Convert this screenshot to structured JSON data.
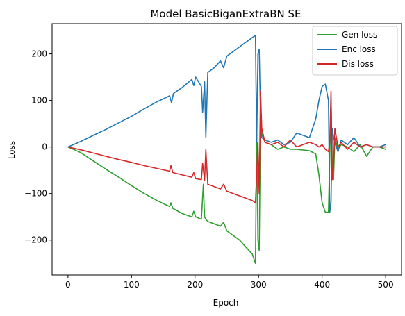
{
  "chart_data": {
    "type": "line",
    "title": "Model BasicBiganExtraBN SE",
    "xlabel": "Epoch",
    "ylabel": "Loss",
    "xlim": [
      -25,
      525
    ],
    "ylim": [
      -275,
      265
    ],
    "xticks": [
      0,
      100,
      200,
      300,
      400,
      500
    ],
    "xtick_labels": [
      "0",
      "100",
      "200",
      "300",
      "400",
      "500"
    ],
    "yticks": [
      -200,
      -100,
      0,
      100,
      200
    ],
    "ytick_labels": [
      "−200",
      "−100",
      "0",
      "100",
      "200"
    ],
    "grid": false,
    "legend_position": "top-right",
    "series": [
      {
        "name": "Gen loss",
        "color": "#2ca02c",
        "x": [
          0,
          20,
          40,
          60,
          80,
          100,
          120,
          140,
          160,
          162,
          165,
          180,
          195,
          198,
          201,
          210,
          213,
          215,
          217,
          220,
          230,
          240,
          245,
          250,
          260,
          270,
          280,
          290,
          295,
          297,
          299,
          301,
          303,
          305,
          310,
          320,
          330,
          340,
          350,
          360,
          380,
          390,
          395,
          400,
          405,
          410,
          412,
          414,
          416,
          418,
          420,
          425,
          430,
          440,
          450,
          460,
          470,
          480,
          490,
          500
        ],
        "y": [
          0,
          -12,
          -30,
          -48,
          -65,
          -83,
          -100,
          -115,
          -128,
          -120,
          -132,
          -143,
          -150,
          -138,
          -150,
          -155,
          -80,
          -150,
          -155,
          -160,
          -165,
          -170,
          -162,
          -180,
          -190,
          -200,
          -215,
          -230,
          -250,
          30,
          -200,
          -222,
          50,
          30,
          10,
          5,
          -5,
          0,
          -5,
          -5,
          -8,
          -15,
          -60,
          -120,
          -140,
          -140,
          -20,
          100,
          -40,
          -70,
          20,
          -5,
          5,
          0,
          -10,
          5,
          -20,
          0,
          0,
          -5
        ]
      },
      {
        "name": "Enc loss",
        "color": "#1f77b4",
        "x": [
          0,
          20,
          40,
          60,
          80,
          100,
          120,
          140,
          160,
          163,
          166,
          180,
          195,
          198,
          201,
          210,
          212,
          215,
          217,
          220,
          230,
          240,
          245,
          250,
          260,
          270,
          280,
          290,
          295,
          297,
          299,
          301,
          303,
          305,
          310,
          320,
          330,
          340,
          350,
          360,
          380,
          390,
          395,
          400,
          405,
          410,
          412,
          414,
          416,
          418,
          420,
          425,
          430,
          440,
          450,
          460,
          470,
          480,
          490,
          500
        ],
        "y": [
          0,
          12,
          25,
          38,
          52,
          66,
          82,
          97,
          110,
          95,
          115,
          128,
          145,
          132,
          150,
          130,
          75,
          140,
          20,
          160,
          170,
          185,
          170,
          195,
          205,
          215,
          225,
          235,
          240,
          10,
          200,
          210,
          70,
          20,
          15,
          10,
          15,
          5,
          10,
          30,
          20,
          60,
          100,
          130,
          135,
          100,
          -140,
          -120,
          40,
          20,
          10,
          -10,
          15,
          5,
          20,
          0,
          5,
          0,
          0,
          5
        ]
      },
      {
        "name": "Dis loss",
        "color": "#d62728",
        "x": [
          0,
          20,
          40,
          60,
          80,
          100,
          120,
          140,
          160,
          162,
          165,
          180,
          195,
          198,
          201,
          210,
          212,
          215,
          217,
          220,
          230,
          240,
          245,
          250,
          260,
          270,
          280,
          290,
          295,
          297,
          299,
          301,
          303,
          305,
          310,
          320,
          330,
          340,
          350,
          360,
          380,
          390,
          395,
          400,
          405,
          410,
          412,
          414,
          416,
          418,
          420,
          425,
          430,
          440,
          450,
          460,
          470,
          480,
          490,
          500
        ],
        "y": [
          0,
          -6,
          -13,
          -20,
          -27,
          -33,
          -40,
          -46,
          -52,
          -40,
          -55,
          -60,
          -65,
          -55,
          -68,
          -70,
          -35,
          -72,
          -5,
          -80,
          -85,
          -90,
          -80,
          -95,
          -100,
          -105,
          -110,
          -115,
          -120,
          -60,
          10,
          -100,
          120,
          40,
          10,
          5,
          10,
          0,
          15,
          0,
          10,
          5,
          0,
          5,
          -5,
          -10,
          10,
          120,
          -70,
          -40,
          40,
          0,
          10,
          -5,
          10,
          0,
          5,
          0,
          0,
          0
        ]
      }
    ]
  }
}
